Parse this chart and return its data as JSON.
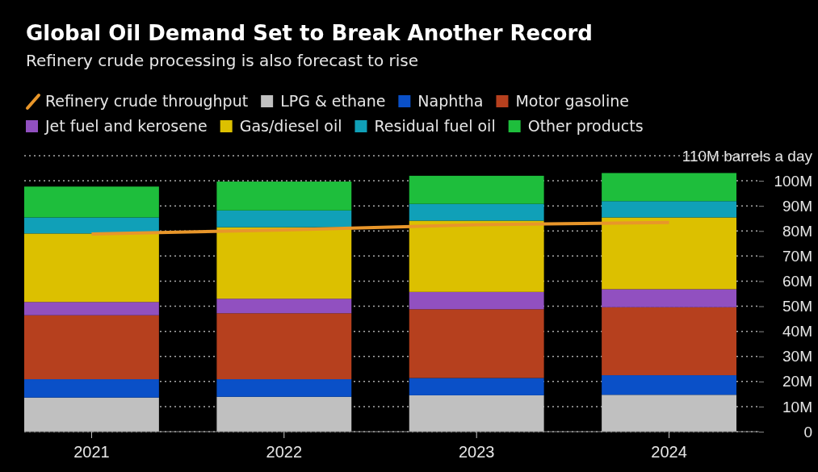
{
  "chart_data": {
    "type": "bar",
    "title": "Global Oil Demand Set to Break Another Record",
    "subtitle": "Refinery crude processing is also forecast to rise",
    "categories": [
      "2021",
      "2022",
      "2023",
      "2024"
    ],
    "stacked": true,
    "series": [
      {
        "name": "Refinery crude throughput",
        "type": "line",
        "color": "#e8962a",
        "values": [
          78.8,
          80.4,
          82.5,
          83.4
        ]
      },
      {
        "name": "LPG & ethane",
        "color": "#c0c0c0",
        "values": [
          13.6,
          13.9,
          14.5,
          14.7
        ]
      },
      {
        "name": "Naphtha",
        "color": "#0a50c8",
        "values": [
          7.3,
          7.0,
          6.9,
          7.8
        ]
      },
      {
        "name": "Motor gasoline",
        "color": "#b6401e",
        "values": [
          25.5,
          26.3,
          27.4,
          27.1
        ]
      },
      {
        "name": "Jet fuel and kerosene",
        "color": "#9150c0",
        "values": [
          5.3,
          5.8,
          6.9,
          7.2
        ]
      },
      {
        "name": "Gas/diesel oil",
        "color": "#dcc000",
        "values": [
          27.3,
          28.5,
          28.4,
          28.6
        ]
      },
      {
        "name": "Residual fuel oil",
        "color": "#10a0b8",
        "values": [
          6.4,
          6.7,
          6.7,
          6.5
        ]
      },
      {
        "name": "Other products",
        "color": "#1ebe3c",
        "values": [
          12.3,
          11.5,
          11.2,
          11.2
        ]
      }
    ],
    "ylim": [
      0,
      110
    ],
    "yticks": [
      0,
      {
        "value": 10,
        "label": "10M"
      },
      {
        "value": 20,
        "label": "20M"
      },
      {
        "value": 30,
        "label": "30M"
      },
      {
        "value": 40,
        "label": "40M"
      },
      {
        "value": 50,
        "label": "50M"
      },
      {
        "value": 60,
        "label": "60M"
      },
      {
        "value": 70,
        "label": "70M"
      },
      {
        "value": 80,
        "label": "80M"
      },
      {
        "value": 90,
        "label": "90M"
      },
      {
        "value": 100,
        "label": "100M"
      },
      {
        "value": 110,
        "label": "110M barrels a day"
      }
    ],
    "grid": "y",
    "legend": "top"
  }
}
